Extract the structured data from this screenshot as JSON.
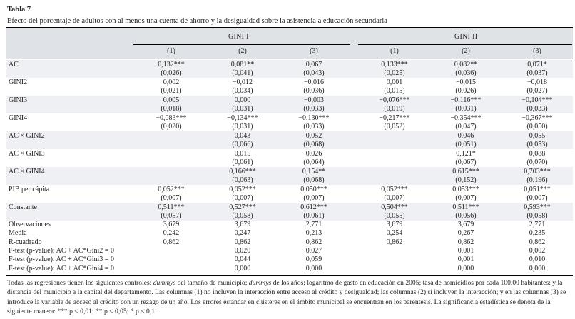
{
  "table": {
    "title": "Tabla 7",
    "subtitle": "Efecto del porcentaje de adultos con al menos una cuenta de ahorro y la desigualdad sobre la asistencia a educación secundaria",
    "groups": [
      "GINI I",
      "GINI II"
    ],
    "column_numbers": [
      "(1)",
      "(2)",
      "(3)",
      "(1)",
      "(2)",
      "(3)"
    ],
    "rows": [
      {
        "label": "AC",
        "coef": [
          "0,132***",
          "0,081**",
          "0,067",
          "0,133***",
          "0,082**",
          "0,071*"
        ],
        "se": [
          "(0,026)",
          "(0,041)",
          "(0,043)",
          "(0,025)",
          "(0,036)",
          "(0,037)"
        ]
      },
      {
        "label": "GINI2",
        "coef": [
          "0,002",
          "−0,012",
          "−0,016",
          "0,001",
          "−0,015",
          "−0,018"
        ],
        "se": [
          "(0,021)",
          "(0,034)",
          "(0,036)",
          "(0,015)",
          "(0,026)",
          "(0,027)"
        ]
      },
      {
        "label": "GINI3",
        "coef": [
          "0,005",
          "0,000",
          "−0,003",
          "−0,076***",
          "−0,116***",
          "−0,104***"
        ],
        "se": [
          "(0,018)",
          "(0,031)",
          "(0,033)",
          "(0,019)",
          "(0,031)",
          "(0,033)"
        ]
      },
      {
        "label": "GINI4",
        "coef": [
          "−0,083***",
          "−0,134***",
          "−0,130***",
          "−0,217***",
          "−0,354***",
          "−0,367***"
        ],
        "se": [
          "(0,020)",
          "(0,031)",
          "(0,033)",
          "(0,052)",
          "(0,047)",
          "(0,050)"
        ]
      },
      {
        "label": "AC × GINI2",
        "coef": [
          "",
          "0,043",
          "0,052",
          "",
          "0,046",
          "0,055"
        ],
        "se": [
          "",
          "(0,066)",
          "(0,068)",
          "",
          "(0,051)",
          "(0,053)"
        ]
      },
      {
        "label": "AC × GINI3",
        "coef": [
          "",
          "0,015",
          "0,026",
          "",
          "0,121*",
          "0,088"
        ],
        "se": [
          "",
          "(0,061)",
          "(0,064)",
          "",
          "(0,067)",
          "(0,070)"
        ]
      },
      {
        "label": "AC × GINI4",
        "coef": [
          "",
          "0,166***",
          "0,154**",
          "",
          "0,615***",
          "0,703***"
        ],
        "se": [
          "",
          "(0,063)",
          "(0,068)",
          "",
          "(0,152)",
          "(0,196)"
        ]
      },
      {
        "label": "PIB per cápita",
        "coef": [
          "0,052***",
          "0,052***",
          "0,050***",
          "0,052***",
          "0,053***",
          "0,051***"
        ],
        "se": [
          "(0,007)",
          "(0,007)",
          "(0,007)",
          "(0,007)",
          "(0,007)",
          "(0,007)"
        ]
      },
      {
        "label": "Constante",
        "coef": [
          "0,511***",
          "0,527***",
          "0,612***",
          "0,504***",
          "0,511***",
          "0,593***"
        ],
        "se": [
          "(0,057)",
          "(0,058)",
          "(0,061)",
          "(0,055)",
          "(0,056)",
          "(0,058)"
        ]
      }
    ],
    "stats": [
      {
        "label": "Observaciones",
        "values": [
          "3,679",
          "3,679",
          "2,771",
          "3,679",
          "3,679",
          "2,771"
        ]
      },
      {
        "label": "Media",
        "values": [
          "0,242",
          "0,247",
          "0,213",
          "0,254",
          "0,267",
          "0,235"
        ]
      },
      {
        "label": "R-cuadrado",
        "values": [
          "0,862",
          "0,862",
          "0,862",
          "0,862",
          "0,862",
          "0,862"
        ]
      },
      {
        "label": "F-test (p-value): AC + AC*Gini2 = 0",
        "values": [
          "",
          "0,020",
          "0,027",
          "",
          "0,001",
          "0,002"
        ]
      },
      {
        "label": "F-test (p-value): AC + AC*Gini3 = 0",
        "values": [
          "",
          "0,044",
          "0,059",
          "",
          "0,001",
          "0,010"
        ]
      },
      {
        "label": "F-test (p-value): AC + AC*Gini4 = 0",
        "values": [
          "",
          "0,000",
          "0,000",
          "",
          "0,000",
          "0,000"
        ]
      }
    ],
    "notes": {
      "part1": "Todas las regresiones tienen los siguientes controles: ",
      "dummys1": "dummys",
      "part2": " del tamaño de municipio; ",
      "dummys2": "dummys",
      "part3": " de los años; logaritmo de gasto en educación en 2005; tasa de homicidios por cada 100.00 habitantes; y la distancia del municipio a la capital del departamento. Las columnas (1) no incluyen la interacción entre acceso al crédito y desigualdad; las columnas (2) sí incluyen la interacción; y en las columnas (3) se introduce la variable de acceso al crédito con un rezago de un año. Los errores estándar en clústeres en el ámbito municipal se encuentran en los paréntesis. La significancia estadística se denota de la siguiente manera: *** p < 0,01; ** p < 0,05; * p < 0,1."
    }
  }
}
